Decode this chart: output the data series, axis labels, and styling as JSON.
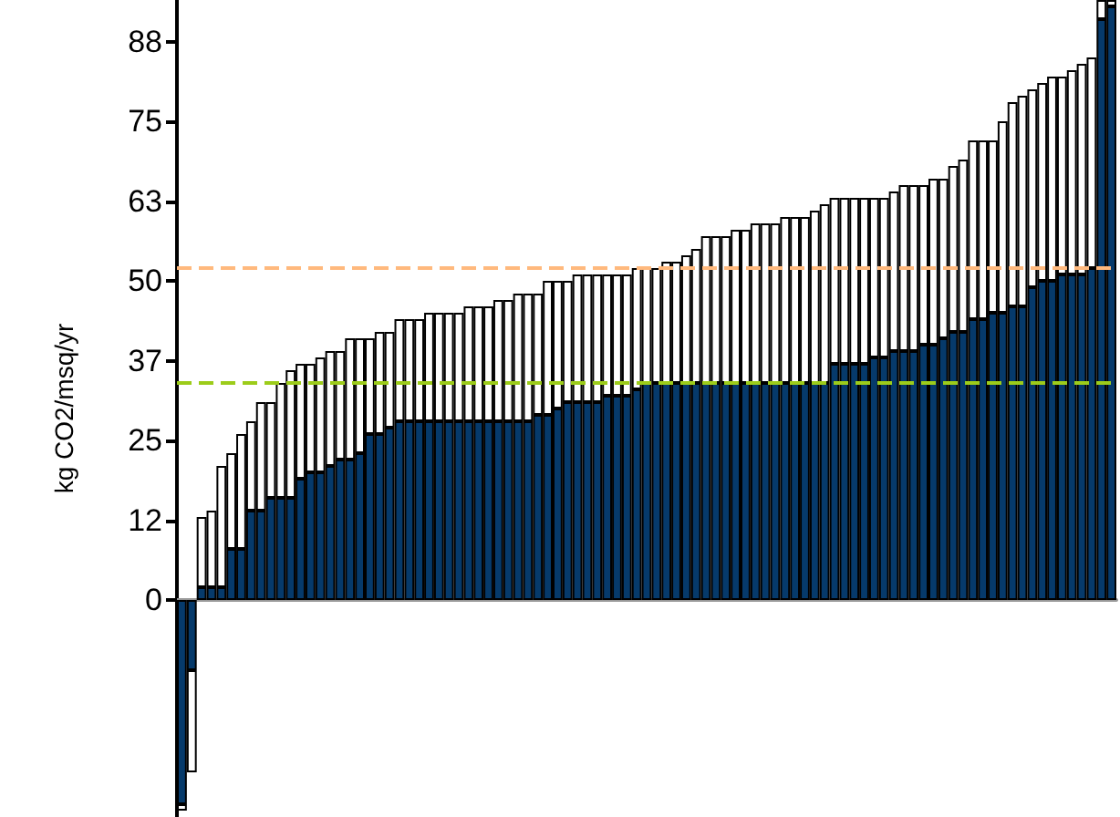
{
  "chart_data": {
    "type": "bar",
    "ylabel": "kg CO2/msq/yr",
    "stacked": true,
    "categories": [
      null,
      null,
      null,
      null,
      null,
      null,
      null,
      null,
      null,
      null,
      null,
      null,
      null,
      null,
      null,
      null,
      null,
      null,
      null,
      null,
      null,
      null,
      null,
      null,
      null,
      null,
      null,
      null,
      null,
      null,
      null,
      null,
      null,
      null,
      null,
      null,
      null,
      null,
      null,
      null,
      null,
      null,
      null,
      null,
      null,
      null,
      null,
      null,
      null,
      null,
      null,
      null,
      null,
      null,
      null,
      null,
      null,
      null,
      null,
      null,
      null,
      null,
      null,
      null,
      null,
      null,
      null,
      null,
      null,
      null,
      null,
      null,
      null,
      null,
      null,
      null,
      null,
      null,
      null,
      null,
      null,
      null,
      null,
      null,
      null,
      null,
      null,
      null,
      null,
      null,
      null,
      null,
      null,
      null,
      null
    ],
    "series": [
      {
        "color": "#063a6b",
        "values": [
          -32,
          -11,
          2,
          2,
          2,
          8,
          8,
          14,
          14,
          16,
          16,
          16,
          19,
          20,
          20,
          21,
          22,
          22,
          23,
          26,
          26,
          27,
          28,
          28,
          28,
          28,
          28,
          28,
          28,
          28,
          28,
          28,
          28,
          28,
          28,
          28,
          29,
          29,
          30,
          31,
          31,
          31,
          31,
          32,
          32,
          32,
          33,
          34,
          34,
          34,
          34,
          34,
          34,
          34,
          34,
          34,
          34,
          34,
          34,
          34,
          34,
          34,
          34,
          34,
          34,
          34,
          37,
          37,
          37,
          37,
          38,
          38,
          39,
          39,
          39,
          40,
          40,
          41,
          42,
          42,
          44,
          44,
          45,
          45,
          46,
          46,
          49,
          50,
          50,
          51,
          51,
          51,
          52,
          91,
          93
        ]
      },
      {
        "color": "#ffffff",
        "values": [
          -1,
          -16,
          11,
          12,
          19,
          15,
          18,
          14,
          17,
          15,
          18,
          20,
          18,
          17,
          18,
          18,
          17,
          19,
          18,
          15,
          16,
          15,
          16,
          16,
          16,
          17,
          17,
          17,
          17,
          18,
          18,
          18,
          19,
          19,
          20,
          20,
          19,
          21,
          20,
          19,
          20,
          20,
          20,
          19,
          19,
          19,
          19,
          18,
          18,
          19,
          19,
          20,
          21,
          23,
          23,
          23,
          24,
          24,
          25,
          25,
          25,
          26,
          26,
          26,
          27,
          28,
          26,
          26,
          26,
          26,
          25,
          25,
          25,
          26,
          26,
          25,
          26,
          25,
          26,
          27,
          28,
          28,
          27,
          30,
          32,
          33,
          31,
          31,
          32,
          31,
          32,
          33,
          33,
          3,
          1
        ]
      }
    ],
    "ylim": [
      -34,
      94
    ],
    "yticks": [
      0,
      {
        "value": 12.5,
        "label": "12"
      },
      25,
      {
        "value": 37.5,
        "label": "37"
      },
      50,
      {
        "value": 62.5,
        "label": "63"
      },
      75,
      {
        "value": 87.5,
        "label": "88"
      }
    ],
    "tick_labels": "y",
    "ref_lines": [
      {
        "axis": "y",
        "value": 52,
        "color": "#ffb97d",
        "line_style": "dashed"
      },
      {
        "axis": "y",
        "value": 34,
        "color": "#9ccc1a",
        "line_style": "dashed"
      }
    ]
  }
}
